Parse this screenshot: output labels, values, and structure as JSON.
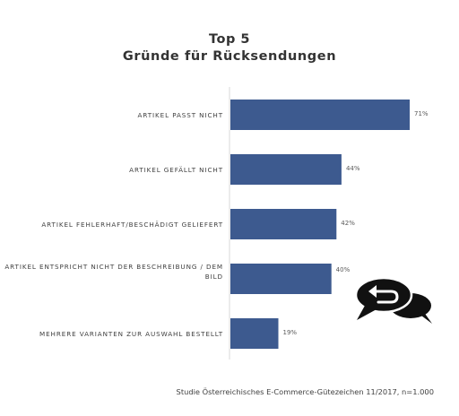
{
  "title_line1": "Top 5",
  "title_line2": "Gründe für Rücksendungen",
  "source": "Studie Österreichisches E-Commerce-Gütezeichen 11/2017, n=1.000",
  "colors": {
    "bar": "#3d5a8f",
    "axis": "#d9d9d9"
  },
  "icon": "chat-return-icon",
  "chart_data": {
    "type": "bar",
    "orientation": "horizontal",
    "title": "Top 5 Gründe für Rücksendungen",
    "categories": [
      "ARTIKEL PASST NICHT",
      "ARTIKEL GEFÄLLT NICHT",
      "ARTIKEL FEHLERHAFT/BESCHÄDIGT GELIEFERT",
      "ARTIKEL ENTSPRICHT NICHT DER BESCHREIBUNG / DEM BILD",
      "MEHRERE VARIANTEN ZUR AUSWAHL BESTELLT"
    ],
    "values": [
      71,
      44,
      42,
      40,
      19
    ],
    "value_labels": [
      "71%",
      "44%",
      "42%",
      "40%",
      "19%"
    ],
    "xlim": [
      0,
      80
    ],
    "grid": false,
    "legend": "none"
  }
}
